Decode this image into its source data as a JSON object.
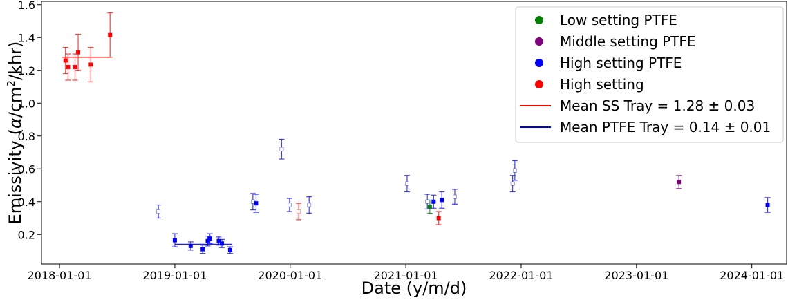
{
  "chart_data": {
    "type": "scatter",
    "xlabel": "Date (y/m/d)",
    "ylabel_parts": {
      "pre": "Emissivity (",
      "alpha": "α",
      "mid": "/cm",
      "sup": "2",
      "post": "/khr)"
    },
    "x_range": [
      "2017-11-05",
      "2024-04-20"
    ],
    "ylim": [
      0.02,
      1.62
    ],
    "x_ticks": [
      {
        "date": "2018-01-01",
        "label": "2018-01-01"
      },
      {
        "date": "2019-01-01",
        "label": "2019-01-01"
      },
      {
        "date": "2020-01-01",
        "label": "2020-01-01"
      },
      {
        "date": "2021-01-01",
        "label": "2021-01-01"
      },
      {
        "date": "2022-01-01",
        "label": "2022-01-01"
      },
      {
        "date": "2023-01-01",
        "label": "2023-01-01"
      },
      {
        "date": "2024-01-01",
        "label": "2024-01-01"
      }
    ],
    "y_ticks": [
      {
        "value": 0.2,
        "label": "0.2"
      },
      {
        "value": 0.4,
        "label": "0.4"
      },
      {
        "value": 0.6,
        "label": "0.6"
      },
      {
        "value": 0.8,
        "label": "0.8"
      },
      {
        "value": 1.0,
        "label": "1.0"
      },
      {
        "value": 1.2,
        "label": "1.2"
      },
      {
        "value": 1.4,
        "label": "1.4"
      },
      {
        "value": 1.6,
        "label": "1.6"
      }
    ],
    "legend": {
      "placement": "top-right",
      "entries": [
        {
          "label": "Low setting PTFE",
          "kind": "dot",
          "color": "#008000"
        },
        {
          "label": "Middle setting PTFE",
          "kind": "dot",
          "color": "#800080"
        },
        {
          "label": "High setting PTFE",
          "kind": "dot",
          "color": "#0000ff"
        },
        {
          "label": "High setting",
          "kind": "dot",
          "color": "#ff0000"
        },
        {
          "label": "Mean SS Tray = 1.28 ± 0.03",
          "kind": "line",
          "color": "#ff0000"
        },
        {
          "label": "Mean PTFE Tray = 0.14 ± 0.01",
          "kind": "line",
          "color": "#0000cc"
        }
      ]
    },
    "mean_lines": [
      {
        "name": "Mean SS Tray",
        "y": 1.28,
        "x_start": "2018-01-08",
        "x_end": "2018-06-12",
        "color": "#ff0000"
      },
      {
        "name": "Mean PTFE Tray",
        "y": 0.14,
        "x_start": "2019-01-01",
        "x_end": "2019-07-01",
        "color": "#0000cc"
      }
    ],
    "series": [
      {
        "name": "High setting",
        "color": "#ff0000",
        "points": [
          {
            "x": "2018-01-20",
            "y": 1.26,
            "err": 0.08,
            "filled": true
          },
          {
            "x": "2018-01-28",
            "y": 1.22,
            "err": 0.08,
            "filled": true
          },
          {
            "x": "2018-02-19",
            "y": 1.22,
            "err": 0.08,
            "filled": true
          },
          {
            "x": "2018-03-01",
            "y": 1.31,
            "err": 0.11,
            "filled": true
          },
          {
            "x": "2018-04-10",
            "y": 1.235,
            "err": 0.105,
            "filled": true
          },
          {
            "x": "2018-06-10",
            "y": 1.415,
            "err": 0.135,
            "filled": true
          },
          {
            "x": "2020-01-28",
            "y": 0.34,
            "err": 0.05,
            "filled": false
          },
          {
            "x": "2021-04-15",
            "y": 0.3,
            "err": 0.04,
            "filled": true
          }
        ]
      },
      {
        "name": "High setting PTFE",
        "color": "#0000ff",
        "points": [
          {
            "x": "2018-11-10",
            "y": 0.34,
            "err": 0.04,
            "filled": false
          },
          {
            "x": "2019-01-01",
            "y": 0.165,
            "err": 0.04,
            "filled": true
          },
          {
            "x": "2019-02-20",
            "y": 0.13,
            "err": 0.025,
            "filled": true
          },
          {
            "x": "2019-03-30",
            "y": 0.11,
            "err": 0.025,
            "filled": true
          },
          {
            "x": "2019-04-15",
            "y": 0.16,
            "err": 0.03,
            "filled": true
          },
          {
            "x": "2019-04-22",
            "y": 0.175,
            "err": 0.03,
            "filled": true
          },
          {
            "x": "2019-05-20",
            "y": 0.16,
            "err": 0.025,
            "filled": true
          },
          {
            "x": "2019-05-30",
            "y": 0.145,
            "err": 0.025,
            "filled": true
          },
          {
            "x": "2019-06-25",
            "y": 0.105,
            "err": 0.02,
            "filled": true
          },
          {
            "x": "2019-09-05",
            "y": 0.4,
            "err": 0.05,
            "filled": false
          },
          {
            "x": "2019-09-15",
            "y": 0.39,
            "err": 0.055,
            "filled": true
          },
          {
            "x": "2019-12-05",
            "y": 0.72,
            "err": 0.06,
            "filled": false
          },
          {
            "x": "2019-12-30",
            "y": 0.38,
            "err": 0.04,
            "filled": false
          },
          {
            "x": "2020-03-01",
            "y": 0.38,
            "err": 0.05,
            "filled": false
          },
          {
            "x": "2021-01-05",
            "y": 0.51,
            "err": 0.05,
            "filled": false
          },
          {
            "x": "2021-03-10",
            "y": 0.4,
            "err": 0.045,
            "filled": false
          },
          {
            "x": "2021-03-30",
            "y": 0.4,
            "err": 0.04,
            "filled": true
          },
          {
            "x": "2021-04-25",
            "y": 0.41,
            "err": 0.05,
            "filled": true
          },
          {
            "x": "2021-06-05",
            "y": 0.43,
            "err": 0.045,
            "filled": false
          },
          {
            "x": "2021-12-05",
            "y": 0.51,
            "err": 0.05,
            "filled": false
          },
          {
            "x": "2021-12-12",
            "y": 0.59,
            "err": 0.06,
            "filled": false
          },
          {
            "x": "2024-02-20",
            "y": 0.38,
            "err": 0.045,
            "filled": true
          }
        ]
      },
      {
        "name": "Low setting PTFE",
        "color": "#008000",
        "points": [
          {
            "x": "2021-03-18",
            "y": 0.37,
            "err": 0.04,
            "filled": true
          }
        ]
      },
      {
        "name": "Middle setting PTFE",
        "color": "#800080",
        "points": [
          {
            "x": "2023-05-15",
            "y": 0.52,
            "err": 0.04,
            "filled": true
          }
        ]
      }
    ]
  }
}
